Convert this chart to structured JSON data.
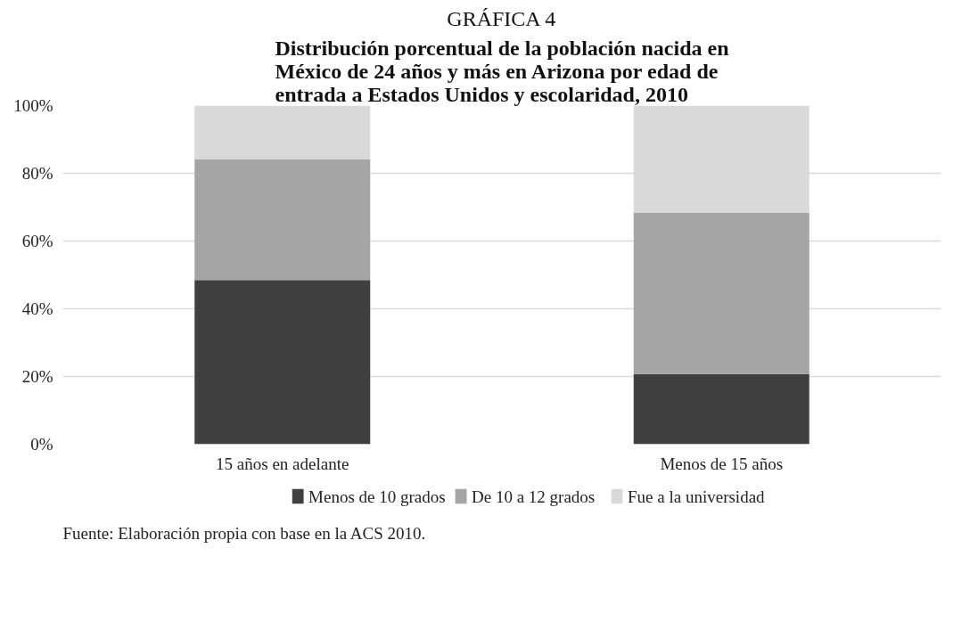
{
  "chart_data": {
    "type": "bar",
    "stacked": true,
    "title": "GRÁFICA 4",
    "subtitle": "Distribución porcentual de la población nacida en\nMéxico de 24 años y más en Arizona por edad de\nentrada a Estados Unidos y escolaridad, 2010",
    "categories": [
      "15 años en adelante",
      "Menos de 15 años"
    ],
    "series": [
      {
        "name": "Menos de 10 grados",
        "color": "#404040",
        "values": [
          48.5,
          20.7
        ]
      },
      {
        "name": "De 10 a 12 grados",
        "color": "#a5a5a5",
        "values": [
          35.7,
          47.6
        ]
      },
      {
        "name": "Fue a la universidad",
        "color": "#d9d9d9",
        "values": [
          15.8,
          31.7
        ]
      }
    ],
    "ylim": [
      0,
      100
    ],
    "yticks": [
      {
        "value": 0,
        "label": "0%"
      },
      {
        "value": 20,
        "label": "20%"
      },
      {
        "value": 40,
        "label": "40%"
      },
      {
        "value": 60,
        "label": "60%"
      },
      {
        "value": 80,
        "label": "80%"
      },
      {
        "value": 100,
        "label": "100%"
      }
    ],
    "grid": "y",
    "legend": "bottom",
    "annotations": [
      "Fuente: Elaboración propia con base en la ACS 2010."
    ]
  }
}
